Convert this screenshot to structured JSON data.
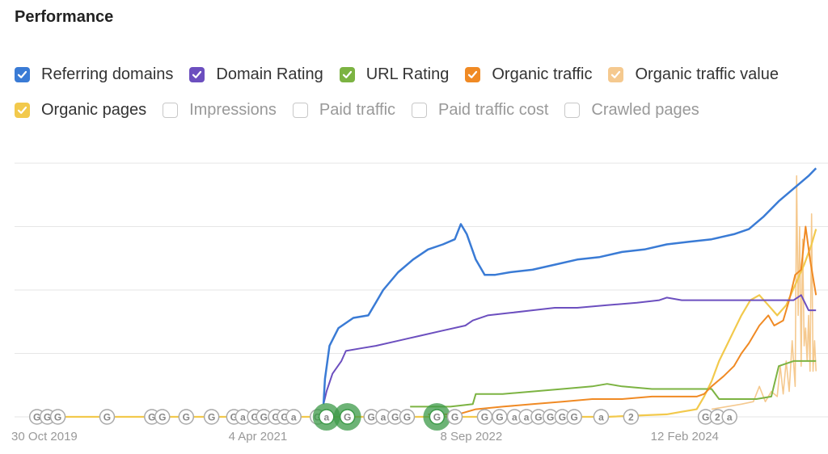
{
  "title": "Performance",
  "legend": [
    {
      "label": "Referring domains",
      "checked": true,
      "color": "#3a7bd5"
    },
    {
      "label": "Domain Rating",
      "checked": true,
      "color": "#6c4fbf"
    },
    {
      "label": "URL Rating",
      "checked": true,
      "color": "#7cb342"
    },
    {
      "label": "Organic traffic",
      "checked": true,
      "color": "#f08a24"
    },
    {
      "label": "Organic traffic value",
      "checked": true,
      "color": "#f5c98f"
    },
    {
      "label": "Organic pages",
      "checked": true,
      "color": "#f2c94c"
    },
    {
      "label": "Impressions",
      "checked": false,
      "color": "#c8c8c8"
    },
    {
      "label": "Paid traffic",
      "checked": false,
      "color": "#c8c8c8"
    },
    {
      "label": "Paid traffic cost",
      "checked": false,
      "color": "#c8c8c8"
    },
    {
      "label": "Crawled pages",
      "checked": false,
      "color": "#c8c8c8"
    }
  ],
  "chart_data": {
    "type": "line",
    "xlim": [
      2019.63,
      2025.08
    ],
    "ylim": [
      0,
      100
    ],
    "grid": true,
    "x_ticks": [
      {
        "label": "30 Oct 2019",
        "x": 2019.83
      },
      {
        "label": "4 Apr 2021",
        "x": 2021.26
      },
      {
        "label": "8 Sep 2022",
        "x": 2022.69
      },
      {
        "label": "12 Feb 2024",
        "x": 2024.12
      }
    ],
    "series": [
      {
        "name": "Referring domains",
        "color": "#3a7bd5",
        "width": 2.5,
        "points": [
          [
            2021.7,
            5
          ],
          [
            2021.71,
            15
          ],
          [
            2021.74,
            28
          ],
          [
            2021.8,
            35
          ],
          [
            2021.9,
            39
          ],
          [
            2022.0,
            40
          ],
          [
            2022.05,
            45
          ],
          [
            2022.1,
            50
          ],
          [
            2022.2,
            57
          ],
          [
            2022.3,
            62
          ],
          [
            2022.4,
            66
          ],
          [
            2022.5,
            68
          ],
          [
            2022.58,
            70
          ],
          [
            2022.62,
            76
          ],
          [
            2022.66,
            72
          ],
          [
            2022.72,
            62
          ],
          [
            2022.78,
            56
          ],
          [
            2022.85,
            56
          ],
          [
            2022.95,
            57
          ],
          [
            2023.1,
            58
          ],
          [
            2023.25,
            60
          ],
          [
            2023.4,
            62
          ],
          [
            2023.55,
            63
          ],
          [
            2023.7,
            65
          ],
          [
            2023.85,
            66
          ],
          [
            2024.0,
            68
          ],
          [
            2024.15,
            69
          ],
          [
            2024.3,
            70
          ],
          [
            2024.45,
            72
          ],
          [
            2024.55,
            74
          ],
          [
            2024.65,
            79
          ],
          [
            2024.75,
            85
          ],
          [
            2024.85,
            90
          ],
          [
            2024.95,
            95
          ],
          [
            2025.0,
            98
          ]
        ]
      },
      {
        "name": "Domain Rating",
        "color": "#6c4fbf",
        "width": 2,
        "points": [
          [
            2021.7,
            5
          ],
          [
            2021.72,
            10
          ],
          [
            2021.76,
            17
          ],
          [
            2021.82,
            22
          ],
          [
            2021.85,
            26
          ],
          [
            2021.95,
            27
          ],
          [
            2022.05,
            28
          ],
          [
            2022.2,
            30
          ],
          [
            2022.35,
            32
          ],
          [
            2022.5,
            34
          ],
          [
            2022.65,
            36
          ],
          [
            2022.7,
            38
          ],
          [
            2022.8,
            40
          ],
          [
            2022.95,
            41
          ],
          [
            2023.1,
            42
          ],
          [
            2023.25,
            43
          ],
          [
            2023.4,
            43
          ],
          [
            2023.6,
            44
          ],
          [
            2023.8,
            45
          ],
          [
            2023.95,
            46
          ],
          [
            2024.0,
            47
          ],
          [
            2024.1,
            46
          ],
          [
            2024.3,
            46
          ],
          [
            2024.5,
            46
          ],
          [
            2024.7,
            46
          ],
          [
            2024.85,
            46
          ],
          [
            2024.9,
            48
          ],
          [
            2024.95,
            42
          ],
          [
            2025.0,
            42
          ]
        ]
      },
      {
        "name": "URL Rating",
        "color": "#7cb342",
        "width": 2,
        "points": [
          [
            2022.28,
            4
          ],
          [
            2022.55,
            4
          ],
          [
            2022.7,
            5
          ],
          [
            2022.72,
            9
          ],
          [
            2022.9,
            9
          ],
          [
            2023.1,
            10
          ],
          [
            2023.3,
            11
          ],
          [
            2023.5,
            12
          ],
          [
            2023.6,
            13
          ],
          [
            2023.7,
            12
          ],
          [
            2023.9,
            11
          ],
          [
            2024.05,
            11
          ],
          [
            2024.2,
            11
          ],
          [
            2024.3,
            11
          ],
          [
            2024.35,
            7
          ],
          [
            2024.45,
            7
          ],
          [
            2024.6,
            7
          ],
          [
            2024.7,
            8
          ],
          [
            2024.75,
            20
          ],
          [
            2024.85,
            22
          ],
          [
            2024.95,
            22
          ],
          [
            2025.0,
            22
          ]
        ]
      },
      {
        "name": "Organic traffic",
        "color": "#f08a24",
        "width": 2,
        "points": [
          [
            2022.4,
            1
          ],
          [
            2022.6,
            1
          ],
          [
            2022.72,
            3
          ],
          [
            2022.9,
            4
          ],
          [
            2023.1,
            5
          ],
          [
            2023.3,
            6
          ],
          [
            2023.5,
            7
          ],
          [
            2023.7,
            7
          ],
          [
            2023.9,
            8
          ],
          [
            2024.05,
            8
          ],
          [
            2024.2,
            8
          ],
          [
            2024.25,
            9
          ],
          [
            2024.3,
            12
          ],
          [
            2024.38,
            16
          ],
          [
            2024.45,
            20
          ],
          [
            2024.5,
            25
          ],
          [
            2024.55,
            29
          ],
          [
            2024.62,
            36
          ],
          [
            2024.68,
            40
          ],
          [
            2024.72,
            36
          ],
          [
            2024.78,
            38
          ],
          [
            2024.82,
            46
          ],
          [
            2024.86,
            56
          ],
          [
            2024.9,
            58
          ],
          [
            2024.93,
            75
          ],
          [
            2024.96,
            62
          ],
          [
            2024.98,
            55
          ],
          [
            2025.0,
            48
          ]
        ]
      },
      {
        "name": "Organic traffic value",
        "color": "#f5c98f",
        "width": 1.6,
        "points": [
          [
            2024.3,
            3
          ],
          [
            2024.4,
            4
          ],
          [
            2024.5,
            5
          ],
          [
            2024.58,
            6
          ],
          [
            2024.62,
            12
          ],
          [
            2024.66,
            6
          ],
          [
            2024.7,
            10
          ],
          [
            2024.74,
            8
          ],
          [
            2024.76,
            20
          ],
          [
            2024.78,
            9
          ],
          [
            2024.8,
            22
          ],
          [
            2024.82,
            10
          ],
          [
            2024.84,
            30
          ],
          [
            2024.86,
            12
          ],
          [
            2024.87,
            95
          ],
          [
            2024.88,
            40
          ],
          [
            2024.89,
            75
          ],
          [
            2024.9,
            20
          ],
          [
            2024.91,
            70
          ],
          [
            2024.92,
            28
          ],
          [
            2024.93,
            35
          ],
          [
            2024.94,
            22
          ],
          [
            2024.95,
            40
          ],
          [
            2024.96,
            18
          ],
          [
            2024.97,
            80
          ],
          [
            2024.98,
            18
          ],
          [
            2024.99,
            30
          ],
          [
            2025.0,
            18
          ]
        ]
      },
      {
        "name": "Organic pages",
        "color": "#f2c94c",
        "width": 2.2,
        "points": [
          [
            2019.75,
            0
          ],
          [
            2020.3,
            0
          ],
          [
            2020.8,
            0
          ],
          [
            2021.2,
            0
          ],
          [
            2021.6,
            0
          ],
          [
            2022.0,
            0
          ],
          [
            2022.4,
            0
          ],
          [
            2022.8,
            0
          ],
          [
            2023.2,
            0
          ],
          [
            2023.6,
            0
          ],
          [
            2024.0,
            1
          ],
          [
            2024.1,
            2
          ],
          [
            2024.2,
            3
          ],
          [
            2024.25,
            8
          ],
          [
            2024.3,
            14
          ],
          [
            2024.35,
            22
          ],
          [
            2024.4,
            28
          ],
          [
            2024.45,
            34
          ],
          [
            2024.5,
            40
          ],
          [
            2024.56,
            46
          ],
          [
            2024.62,
            48
          ],
          [
            2024.68,
            44
          ],
          [
            2024.74,
            40
          ],
          [
            2024.8,
            44
          ],
          [
            2024.86,
            52
          ],
          [
            2024.92,
            60
          ],
          [
            2024.97,
            68
          ],
          [
            2025.0,
            74
          ]
        ]
      }
    ],
    "annotations": [
      {
        "x": 2019.78,
        "label": "G",
        "size": "small"
      },
      {
        "x": 2019.85,
        "label": "G",
        "size": "small"
      },
      {
        "x": 2019.92,
        "label": "G",
        "size": "small"
      },
      {
        "x": 2020.25,
        "label": "G",
        "size": "small"
      },
      {
        "x": 2020.55,
        "label": "G",
        "size": "small"
      },
      {
        "x": 2020.62,
        "label": "G",
        "size": "small"
      },
      {
        "x": 2020.78,
        "label": "G",
        "size": "small"
      },
      {
        "x": 2020.95,
        "label": "G",
        "size": "small"
      },
      {
        "x": 2021.1,
        "label": "G",
        "size": "small"
      },
      {
        "x": 2021.16,
        "label": "a",
        "size": "small"
      },
      {
        "x": 2021.24,
        "label": "G",
        "size": "small"
      },
      {
        "x": 2021.3,
        "label": "G",
        "size": "small"
      },
      {
        "x": 2021.38,
        "label": "G",
        "size": "small"
      },
      {
        "x": 2021.44,
        "label": "G",
        "size": "small"
      },
      {
        "x": 2021.5,
        "label": "a",
        "size": "small"
      },
      {
        "x": 2021.66,
        "label": "G",
        "size": "small"
      },
      {
        "x": 2021.72,
        "label": "a",
        "size": "big"
      },
      {
        "x": 2021.86,
        "label": "G",
        "size": "big"
      },
      {
        "x": 2022.02,
        "label": "G",
        "size": "small"
      },
      {
        "x": 2022.1,
        "label": "a",
        "size": "small"
      },
      {
        "x": 2022.18,
        "label": "G",
        "size": "small"
      },
      {
        "x": 2022.26,
        "label": "G",
        "size": "small"
      },
      {
        "x": 2022.46,
        "label": "G",
        "size": "big"
      },
      {
        "x": 2022.58,
        "label": "G",
        "size": "small"
      },
      {
        "x": 2022.78,
        "label": "G",
        "size": "small"
      },
      {
        "x": 2022.88,
        "label": "G",
        "size": "small"
      },
      {
        "x": 2022.98,
        "label": "a",
        "size": "small"
      },
      {
        "x": 2023.06,
        "label": "a",
        "size": "small"
      },
      {
        "x": 2023.14,
        "label": "G",
        "size": "small"
      },
      {
        "x": 2023.22,
        "label": "G",
        "size": "small"
      },
      {
        "x": 2023.3,
        "label": "G",
        "size": "small"
      },
      {
        "x": 2023.38,
        "label": "G",
        "size": "small"
      },
      {
        "x": 2023.56,
        "label": "a",
        "size": "small"
      },
      {
        "x": 2023.76,
        "label": "2",
        "size": "small"
      },
      {
        "x": 2024.26,
        "label": "G",
        "size": "small"
      },
      {
        "x": 2024.34,
        "label": "2",
        "size": "small"
      },
      {
        "x": 2024.42,
        "label": "a",
        "size": "small"
      }
    ]
  }
}
